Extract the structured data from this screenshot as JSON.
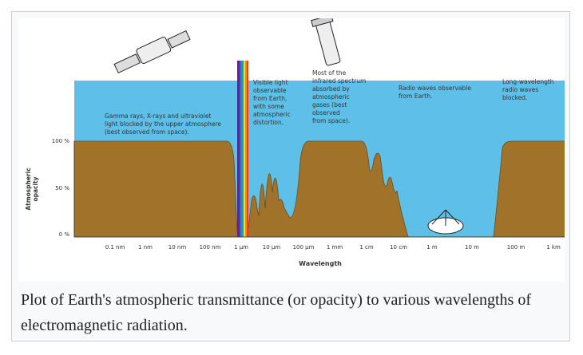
{
  "figure": {
    "y_axis_title": [
      "Atmospheric",
      "opacity"
    ],
    "y_ticks": [
      "100 %",
      "50 %",
      "0 %"
    ],
    "x_ticks": [
      "0.1 nm",
      "1 nm",
      "10 nm",
      "100 nm",
      "1 μm",
      "10 μm",
      "100 μm",
      "1 mm",
      "1 cm",
      "10 cm",
      "1 m",
      "10 m",
      "100 m",
      "1 km"
    ],
    "x_axis_title": "Wavelength",
    "annotations": [
      [
        "Gamma rays, X-rays and ultraviolet",
        "light blocked by the upper atmosphere",
        "(best observed from space)."
      ],
      [
        "Visible light",
        "observable",
        "from Earth,",
        "with some",
        "atmospheric",
        "distortion."
      ],
      [
        "Most of the",
        "infrared spectrum",
        "absorbed by",
        "atmospheric",
        "gases (best",
        "observed",
        "from space)."
      ],
      [
        "Radio waves observable",
        "from Earth."
      ],
      [
        "Long-wavelength",
        "radio waves",
        "blocked."
      ]
    ]
  },
  "caption": "Plot of Earth's atmospheric transmittance (or opacity) to various wavelengths of electromagnetic radiation."
}
